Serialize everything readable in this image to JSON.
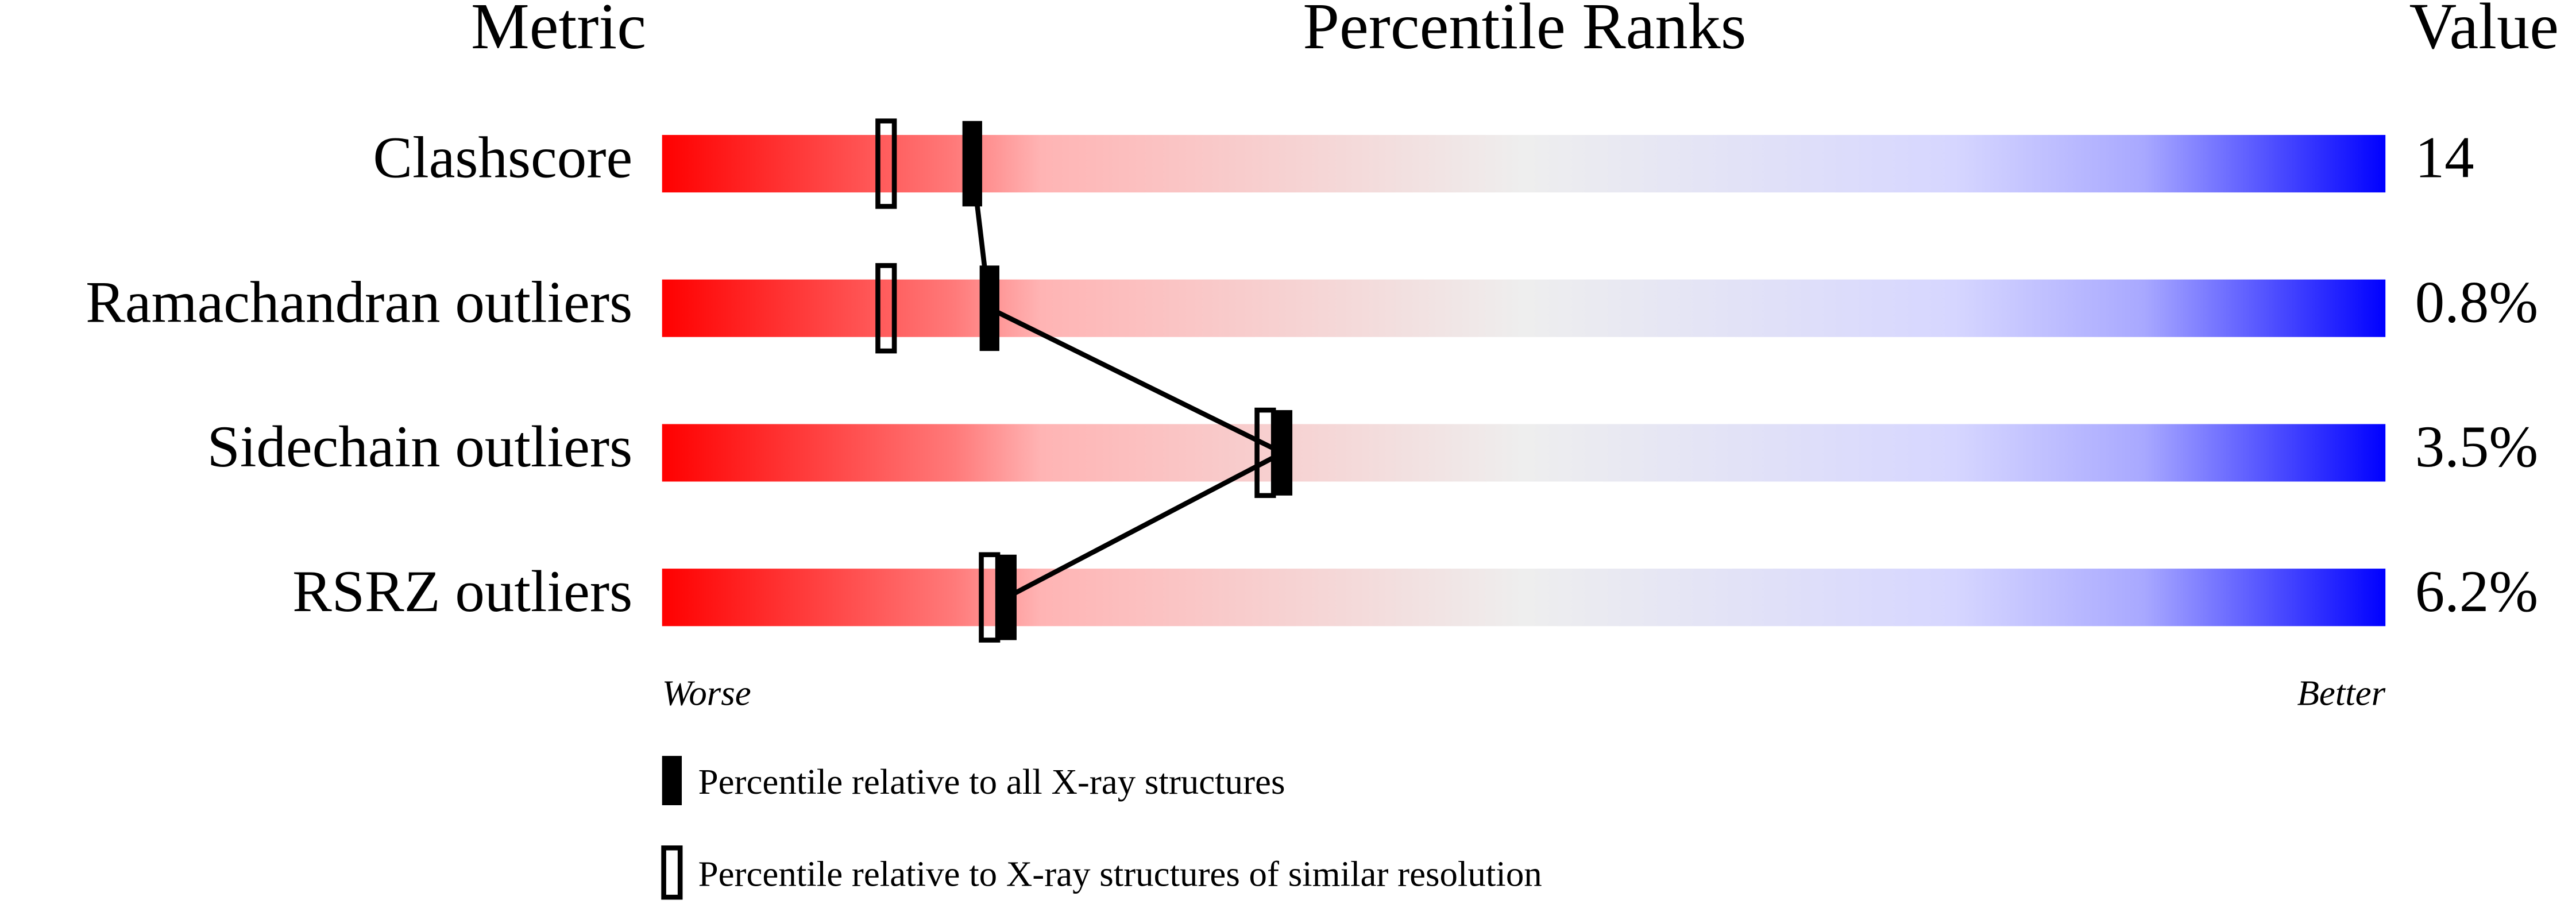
{
  "chart_data": {
    "type": "percentile_slider",
    "headers": {
      "metric": "Metric",
      "ranks": "Percentile Ranks",
      "value": "Value"
    },
    "categories": [
      "Clashscore",
      "Ramachandran outliers",
      "Sidechain outliers",
      "RSRZ outliers"
    ],
    "values": [
      14,
      0.8,
      3.5,
      6.2
    ],
    "value_labels": [
      "14",
      "0.8%",
      "3.5%",
      "6.2%"
    ],
    "series": [
      {
        "name": "Percentile relative to all X-ray structures",
        "color": "#000000",
        "filled": true,
        "values": [
          18,
          19,
          36,
          20
        ]
      },
      {
        "name": "Percentile relative to X-ray structures of similar resolution",
        "color": "#000000",
        "filled": false,
        "values": [
          13,
          13,
          35,
          19
        ]
      }
    ],
    "xlim": [
      0,
      100
    ],
    "axis_labels": {
      "low": "Worse",
      "high": "Better"
    }
  }
}
